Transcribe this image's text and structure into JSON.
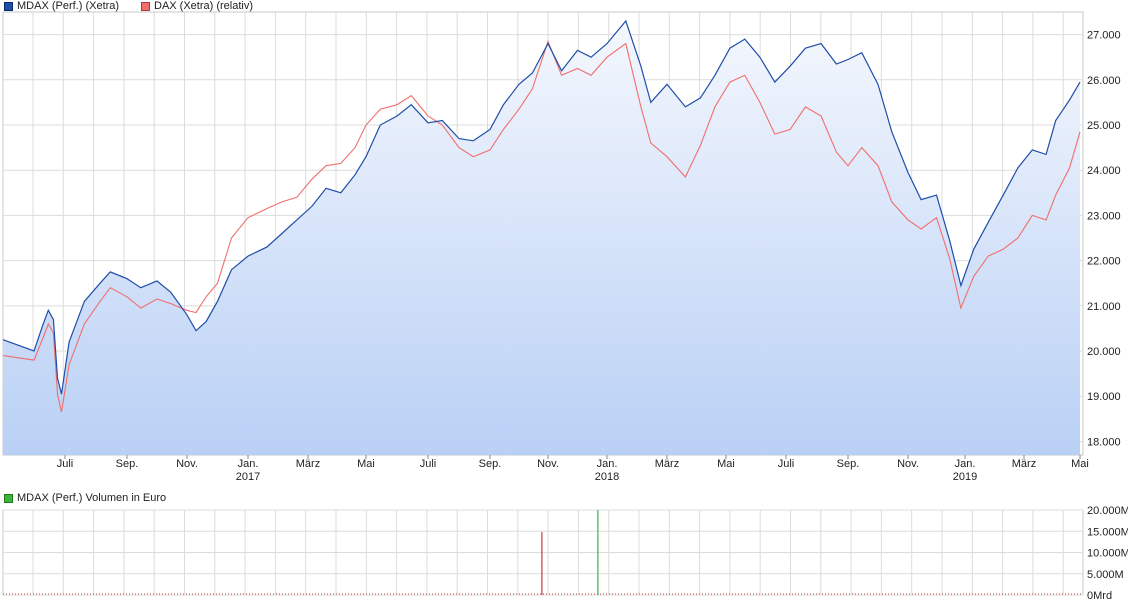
{
  "legend": {
    "series1": {
      "label": "MDAX (Perf.) (Xetra)",
      "color": "#1f4ea8"
    },
    "series2": {
      "label": "DAX (Xetra) (relativ)",
      "color": "#ef6f6f"
    },
    "volume": {
      "label": "MDAX (Perf.) Volumen in Euro",
      "color": "#3cb43c"
    }
  },
  "chart_data": [
    {
      "type": "line",
      "title": "",
      "y_ticks": [
        "18.000",
        "19.000",
        "20.000",
        "21.000",
        "22.000",
        "23.000",
        "24.000",
        "25.000",
        "26.000",
        "27.000"
      ],
      "ylim": [
        17700,
        27500
      ],
      "x_ticks": [
        {
          "label": "Juli",
          "year": ""
        },
        {
          "label": "Sep.",
          "year": ""
        },
        {
          "label": "Nov.",
          "year": ""
        },
        {
          "label": "Jan.",
          "year": "2017"
        },
        {
          "label": "März",
          "year": ""
        },
        {
          "label": "Mai",
          "year": ""
        },
        {
          "label": "Juli",
          "year": ""
        },
        {
          "label": "Sep.",
          "year": ""
        },
        {
          "label": "Nov.",
          "year": ""
        },
        {
          "label": "Jan.",
          "year": "2018"
        },
        {
          "label": "März",
          "year": ""
        },
        {
          "label": "Mai",
          "year": ""
        },
        {
          "label": "Juli",
          "year": ""
        },
        {
          "label": "Sep.",
          "year": ""
        },
        {
          "label": "Nov.",
          "year": ""
        },
        {
          "label": "Jan.",
          "year": "2019"
        },
        {
          "label": "März",
          "year": ""
        },
        {
          "label": "Mai",
          "year": ""
        }
      ],
      "series": [
        {
          "name": "MDAX (Perf.) (Xetra)",
          "color": "#1f4ea8",
          "points": [
            [
              "2016-05",
              20250
            ],
            [
              "2016-06-01",
              20000
            ],
            [
              "2016-06-10",
              20600
            ],
            [
              "2016-06-15",
              20900
            ],
            [
              "2016-06-20",
              20700
            ],
            [
              "2016-06-24",
              19400
            ],
            [
              "2016-06-28",
              19050
            ],
            [
              "2016-07-05",
              20200
            ],
            [
              "2016-07-20",
              21100
            ],
            [
              "2016-08-05",
              21500
            ],
            [
              "2016-08-15",
              21750
            ],
            [
              "2016-09-01",
              21600
            ],
            [
              "2016-09-15",
              21400
            ],
            [
              "2016-10-01",
              21550
            ],
            [
              "2016-10-15",
              21300
            ],
            [
              "2016-11-01",
              20800
            ],
            [
              "2016-11-10",
              20450
            ],
            [
              "2016-11-20",
              20650
            ],
            [
              "2016-12-01",
              21100
            ],
            [
              "2016-12-15",
              21800
            ],
            [
              "2017-01-01",
              22100
            ],
            [
              "2017-01-20",
              22300
            ],
            [
              "2017-02-05",
              22600
            ],
            [
              "2017-02-20",
              22900
            ],
            [
              "2017-03-05",
              23200
            ],
            [
              "2017-03-20",
              23600
            ],
            [
              "2017-04-05",
              23500
            ],
            [
              "2017-04-20",
              23900
            ],
            [
              "2017-05-01",
              24300
            ],
            [
              "2017-05-15",
              25000
            ],
            [
              "2017-06-01",
              25200
            ],
            [
              "2017-06-15",
              25450
            ],
            [
              "2017-07-01",
              25050
            ],
            [
              "2017-07-15",
              25100
            ],
            [
              "2017-08-01",
              24700
            ],
            [
              "2017-08-15",
              24650
            ],
            [
              "2017-09-01",
              24900
            ],
            [
              "2017-09-15",
              25450
            ],
            [
              "2017-10-01",
              25900
            ],
            [
              "2017-10-15",
              26150
            ],
            [
              "2017-11-01",
              26800
            ],
            [
              "2017-11-15",
              26200
            ],
            [
              "2017-12-01",
              26650
            ],
            [
              "2017-12-15",
              26500
            ],
            [
              "2018-01-01",
              26800
            ],
            [
              "2018-01-20",
              27300
            ],
            [
              "2018-02-05",
              26300
            ],
            [
              "2018-02-15",
              25500
            ],
            [
              "2018-03-01",
              25900
            ],
            [
              "2018-03-20",
              25400
            ],
            [
              "2018-04-05",
              25600
            ],
            [
              "2018-04-20",
              26100
            ],
            [
              "2018-05-05",
              26700
            ],
            [
              "2018-05-20",
              26900
            ],
            [
              "2018-06-05",
              26500
            ],
            [
              "2018-06-20",
              25950
            ],
            [
              "2018-07-05",
              26300
            ],
            [
              "2018-07-20",
              26700
            ],
            [
              "2018-08-05",
              26800
            ],
            [
              "2018-08-20",
              26350
            ],
            [
              "2018-09-01",
              26450
            ],
            [
              "2018-09-15",
              26600
            ],
            [
              "2018-10-01",
              25900
            ],
            [
              "2018-10-15",
              24850
            ],
            [
              "2018-11-01",
              23950
            ],
            [
              "2018-11-15",
              23350
            ],
            [
              "2018-12-01",
              23450
            ],
            [
              "2018-12-15",
              22450
            ],
            [
              "2018-12-27",
              21450
            ],
            [
              "2019-01-10",
              22250
            ],
            [
              "2019-01-25",
              22850
            ],
            [
              "2019-02-10",
              23450
            ],
            [
              "2019-02-25",
              24050
            ],
            [
              "2019-03-10",
              24450
            ],
            [
              "2019-03-25",
              24350
            ],
            [
              "2019-04-05",
              25100
            ],
            [
              "2019-04-20",
              25550
            ],
            [
              "2019-05-03",
              25950
            ]
          ]
        },
        {
          "name": "DAX (Xetra) (relativ)",
          "color": "#ef6f6f",
          "points": [
            [
              "2016-05",
              19900
            ],
            [
              "2016-06-01",
              19800
            ],
            [
              "2016-06-10",
              20300
            ],
            [
              "2016-06-15",
              20600
            ],
            [
              "2016-06-20",
              20400
            ],
            [
              "2016-06-24",
              19050
            ],
            [
              "2016-06-28",
              18650
            ],
            [
              "2016-07-05",
              19700
            ],
            [
              "2016-07-20",
              20600
            ],
            [
              "2016-08-05",
              21100
            ],
            [
              "2016-08-15",
              21400
            ],
            [
              "2016-09-01",
              21200
            ],
            [
              "2016-09-15",
              20950
            ],
            [
              "2016-10-01",
              21150
            ],
            [
              "2016-10-15",
              21050
            ],
            [
              "2016-11-01",
              20900
            ],
            [
              "2016-11-10",
              20850
            ],
            [
              "2016-11-20",
              21200
            ],
            [
              "2016-12-01",
              21500
            ],
            [
              "2016-12-15",
              22500
            ],
            [
              "2017-01-01",
              22950
            ],
            [
              "2017-01-20",
              23150
            ],
            [
              "2017-02-05",
              23300
            ],
            [
              "2017-02-20",
              23400
            ],
            [
              "2017-03-05",
              23800
            ],
            [
              "2017-03-20",
              24100
            ],
            [
              "2017-04-05",
              24150
            ],
            [
              "2017-04-20",
              24500
            ],
            [
              "2017-05-01",
              25000
            ],
            [
              "2017-05-15",
              25350
            ],
            [
              "2017-06-01",
              25450
            ],
            [
              "2017-06-15",
              25650
            ],
            [
              "2017-07-01",
              25200
            ],
            [
              "2017-07-15",
              25000
            ],
            [
              "2017-08-01",
              24500
            ],
            [
              "2017-08-15",
              24300
            ],
            [
              "2017-09-01",
              24450
            ],
            [
              "2017-09-15",
              24900
            ],
            [
              "2017-10-01",
              25350
            ],
            [
              "2017-10-15",
              25800
            ],
            [
              "2017-11-01",
              26850
            ],
            [
              "2017-11-15",
              26100
            ],
            [
              "2017-12-01",
              26250
            ],
            [
              "2017-12-15",
              26100
            ],
            [
              "2018-01-01",
              26500
            ],
            [
              "2018-01-20",
              26800
            ],
            [
              "2018-02-05",
              25400
            ],
            [
              "2018-02-15",
              24600
            ],
            [
              "2018-03-01",
              24300
            ],
            [
              "2018-03-20",
              23850
            ],
            [
              "2018-04-05",
              24550
            ],
            [
              "2018-04-20",
              25400
            ],
            [
              "2018-05-05",
              25950
            ],
            [
              "2018-05-20",
              26100
            ],
            [
              "2018-06-05",
              25500
            ],
            [
              "2018-06-20",
              24800
            ],
            [
              "2018-07-05",
              24900
            ],
            [
              "2018-07-20",
              25400
            ],
            [
              "2018-08-05",
              25200
            ],
            [
              "2018-08-20",
              24400
            ],
            [
              "2018-09-01",
              24100
            ],
            [
              "2018-09-15",
              24500
            ],
            [
              "2018-10-01",
              24100
            ],
            [
              "2018-10-15",
              23300
            ],
            [
              "2018-11-01",
              22900
            ],
            [
              "2018-11-15",
              22700
            ],
            [
              "2018-12-01",
              22950
            ],
            [
              "2018-12-15",
              22050
            ],
            [
              "2018-12-27",
              20950
            ],
            [
              "2019-01-10",
              21650
            ],
            [
              "2019-01-25",
              22100
            ],
            [
              "2019-02-10",
              22250
            ],
            [
              "2019-02-25",
              22500
            ],
            [
              "2019-03-10",
              23000
            ],
            [
              "2019-03-25",
              22900
            ],
            [
              "2019-04-05",
              23450
            ],
            [
              "2019-04-20",
              24050
            ],
            [
              "2019-05-03",
              24850
            ]
          ]
        }
      ]
    },
    {
      "type": "bar",
      "title": "MDAX (Perf.) Volumen in Euro",
      "y_ticks": [
        "0Mrd",
        "5.000M",
        "10.000M",
        "15.000M",
        "20.000M"
      ],
      "ylim": [
        0,
        20000
      ],
      "spikes": [
        {
          "date": "2017-10-25",
          "value": 14800,
          "color": "#c83c3c"
        },
        {
          "date": "2017-12-22",
          "value": 20000,
          "color": "#3cb43c"
        }
      ]
    }
  ]
}
